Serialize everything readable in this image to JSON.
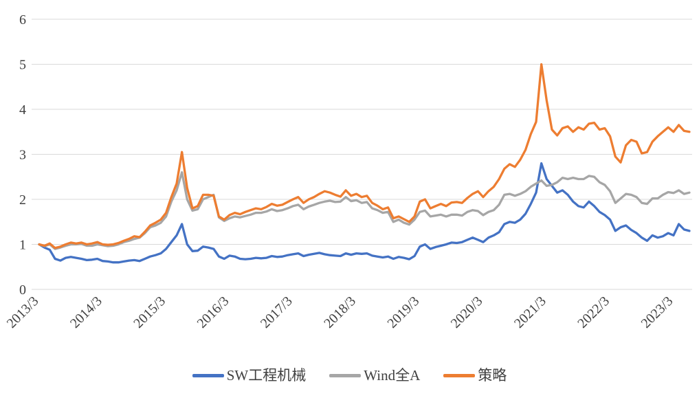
{
  "chart": {
    "background": "#ffffff",
    "grid_color": "#d9d9d9",
    "axis_text_color": "#404040"
  },
  "chart_data": {
    "type": "line",
    "title": "",
    "xlabel": "",
    "ylabel": "",
    "ylim": [
      0,
      6
    ],
    "y_ticks": [
      0,
      1,
      2,
      3,
      4,
      5,
      6
    ],
    "x_tick_labels": [
      "2013/3",
      "2014/3",
      "2015/3",
      "2016/3",
      "2017/3",
      "2018/3",
      "2019/3",
      "2020/3",
      "2021/3",
      "2022/3",
      "2023/3"
    ],
    "x_frequency": "monthly",
    "x_start": "2013/3",
    "x_end": "2023/6",
    "grid": "horizontal",
    "legend_position": "bottom",
    "series": [
      {
        "name": "SW工程机械",
        "color": "#4472c4",
        "values": [
          1.0,
          0.93,
          0.88,
          0.68,
          0.64,
          0.7,
          0.72,
          0.7,
          0.68,
          0.65,
          0.66,
          0.68,
          0.63,
          0.62,
          0.6,
          0.6,
          0.62,
          0.64,
          0.65,
          0.63,
          0.68,
          0.73,
          0.76,
          0.8,
          0.9,
          1.05,
          1.2,
          1.45,
          1.0,
          0.85,
          0.86,
          0.95,
          0.93,
          0.9,
          0.73,
          0.68,
          0.75,
          0.73,
          0.68,
          0.67,
          0.68,
          0.7,
          0.69,
          0.7,
          0.74,
          0.72,
          0.73,
          0.76,
          0.78,
          0.8,
          0.74,
          0.77,
          0.79,
          0.81,
          0.78,
          0.76,
          0.75,
          0.74,
          0.8,
          0.77,
          0.8,
          0.79,
          0.8,
          0.75,
          0.73,
          0.71,
          0.73,
          0.68,
          0.72,
          0.7,
          0.67,
          0.74,
          0.95,
          1.0,
          0.9,
          0.94,
          0.97,
          1.0,
          1.04,
          1.03,
          1.05,
          1.1,
          1.15,
          1.1,
          1.05,
          1.15,
          1.2,
          1.27,
          1.45,
          1.5,
          1.48,
          1.55,
          1.68,
          1.9,
          2.15,
          2.8,
          2.45,
          2.3,
          2.15,
          2.2,
          2.1,
          1.95,
          1.85,
          1.82,
          1.95,
          1.85,
          1.72,
          1.65,
          1.55,
          1.3,
          1.38,
          1.42,
          1.32,
          1.25,
          1.15,
          1.08,
          1.2,
          1.15,
          1.18,
          1.25,
          1.2,
          1.45,
          1.33,
          1.3
        ]
      },
      {
        "name": "Wind全A",
        "color": "#a6a6a6",
        "values": [
          1.0,
          0.96,
          1.0,
          0.9,
          0.93,
          0.97,
          1.0,
          1.0,
          1.01,
          0.97,
          0.97,
          1.0,
          0.98,
          0.96,
          0.97,
          1.0,
          1.05,
          1.08,
          1.12,
          1.15,
          1.25,
          1.38,
          1.42,
          1.48,
          1.62,
          1.95,
          2.2,
          2.6,
          2.0,
          1.75,
          1.78,
          2.0,
          2.05,
          2.1,
          1.6,
          1.52,
          1.58,
          1.62,
          1.6,
          1.63,
          1.66,
          1.7,
          1.7,
          1.73,
          1.78,
          1.74,
          1.76,
          1.8,
          1.85,
          1.88,
          1.78,
          1.84,
          1.88,
          1.92,
          1.95,
          1.97,
          1.94,
          1.95,
          2.05,
          1.96,
          1.98,
          1.92,
          1.94,
          1.8,
          1.76,
          1.7,
          1.72,
          1.5,
          1.55,
          1.48,
          1.44,
          1.55,
          1.72,
          1.75,
          1.62,
          1.64,
          1.66,
          1.62,
          1.66,
          1.66,
          1.64,
          1.72,
          1.76,
          1.74,
          1.65,
          1.72,
          1.76,
          1.88,
          2.1,
          2.12,
          2.08,
          2.12,
          2.18,
          2.28,
          2.35,
          2.42,
          2.3,
          2.32,
          2.38,
          2.48,
          2.45,
          2.48,
          2.45,
          2.45,
          2.52,
          2.5,
          2.38,
          2.32,
          2.18,
          1.92,
          2.02,
          2.12,
          2.1,
          2.05,
          1.92,
          1.9,
          2.02,
          2.02,
          2.1,
          2.16,
          2.14,
          2.2,
          2.12,
          2.15
        ]
      },
      {
        "name": "策略",
        "color": "#ed7d31",
        "values": [
          1.0,
          0.97,
          1.02,
          0.92,
          0.95,
          1.0,
          1.04,
          1.02,
          1.04,
          1.0,
          1.02,
          1.05,
          1.0,
          0.99,
          1.0,
          1.03,
          1.08,
          1.12,
          1.18,
          1.16,
          1.28,
          1.42,
          1.48,
          1.55,
          1.7,
          2.05,
          2.35,
          3.05,
          2.25,
          1.8,
          1.85,
          2.1,
          2.1,
          2.08,
          1.62,
          1.55,
          1.65,
          1.7,
          1.67,
          1.72,
          1.76,
          1.8,
          1.78,
          1.83,
          1.9,
          1.86,
          1.88,
          1.94,
          2.0,
          2.05,
          1.92,
          2.0,
          2.05,
          2.12,
          2.18,
          2.15,
          2.1,
          2.06,
          2.2,
          2.08,
          2.12,
          2.05,
          2.08,
          1.92,
          1.86,
          1.78,
          1.82,
          1.58,
          1.62,
          1.56,
          1.5,
          1.62,
          1.95,
          2.0,
          1.8,
          1.85,
          1.9,
          1.85,
          1.93,
          1.94,
          1.92,
          2.03,
          2.12,
          2.18,
          2.05,
          2.18,
          2.28,
          2.45,
          2.68,
          2.78,
          2.72,
          2.88,
          3.1,
          3.45,
          3.72,
          5.0,
          4.2,
          3.55,
          3.42,
          3.58,
          3.62,
          3.5,
          3.6,
          3.55,
          3.68,
          3.7,
          3.55,
          3.58,
          3.4,
          2.95,
          2.82,
          3.2,
          3.32,
          3.28,
          3.02,
          3.05,
          3.28,
          3.4,
          3.5,
          3.6,
          3.5,
          3.65,
          3.52,
          3.5
        ]
      }
    ]
  }
}
